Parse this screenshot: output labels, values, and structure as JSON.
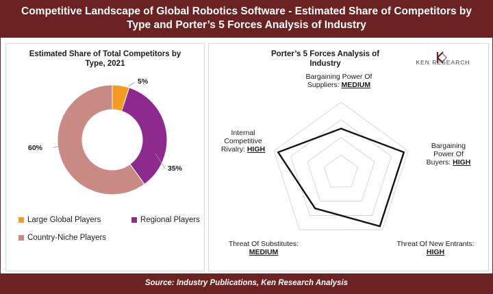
{
  "header": {
    "line1": "Competitive Landscape of Global Robotics Software - Estimated Share of Competitors by",
    "line2": "Type and Porter’s 5 Forces Analysis of Industry"
  },
  "footer": {
    "source": "Source: Industry Publications, Ken Research Analysis"
  },
  "logo": {
    "text": "KEN RESEARCH"
  },
  "colors": {
    "brand": "#6b2222",
    "large_global": "#f59a23",
    "regional": "#8e2a8e",
    "country_niche": "#c98a86"
  },
  "chart_data": [
    {
      "type": "pie",
      "title_line1": "Estimated Share of Total Competitors by",
      "title_line2": "Type, 2021",
      "categories": [
        "Large Global Players",
        "Regional Players",
        "Country-Niche Players"
      ],
      "values": [
        5,
        35,
        60
      ],
      "data_labels": [
        "5%",
        "35%",
        "60%"
      ],
      "legend": "bottom"
    },
    {
      "type": "radar",
      "title_line1": "Porter’s 5 Forces Analysis of",
      "title_line2": "Industry",
      "scale": [
        "LOW",
        "MEDIUM",
        "HIGH"
      ],
      "axes": [
        {
          "line1": "Bargaining Power Of",
          "line2_prefix": "Suppliers: ",
          "level": "MEDIUM",
          "value": 2
        },
        {
          "line1": "Bargaining",
          "line2": "Power Of",
          "line3_prefix": "Buyers: ",
          "level": "HIGH",
          "value": 3
        },
        {
          "line1_prefix": "Threat Of New Entrants:",
          "level": "HIGH",
          "value": 3
        },
        {
          "line1_prefix": "Threat Of Substitutes:",
          "level": "MEDIUM",
          "value": 2
        },
        {
          "line1": "Internal",
          "line2": "Competitive",
          "line3_prefix": "Rivalry: ",
          "level": "HIGH",
          "value": 3
        }
      ],
      "max": 3.2,
      "grid_rings": 4
    }
  ]
}
